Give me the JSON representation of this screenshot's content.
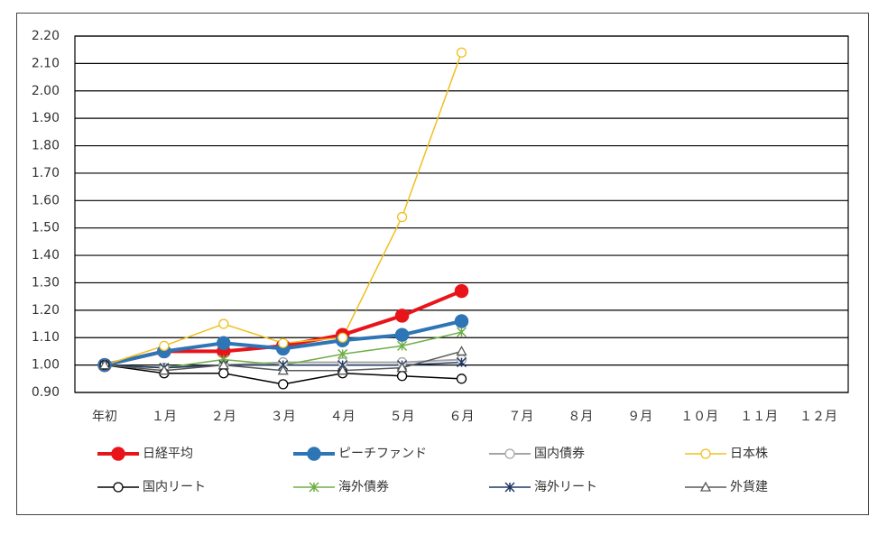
{
  "chart_data": {
    "type": "line",
    "categories": [
      "年初",
      "１月",
      "２月",
      "３月",
      "４月",
      "５月",
      "６月",
      "７月",
      "８月",
      "９月",
      "１０月",
      "１１月",
      "１２月"
    ],
    "ylim": [
      0.9,
      2.2
    ],
    "yticks": [
      {
        "value": 0.9,
        "label": "0.90"
      },
      {
        "value": 1.0,
        "label": "1.00"
      },
      {
        "value": 1.1,
        "label": "1.10"
      },
      {
        "value": 1.2,
        "label": "1.20"
      },
      {
        "value": 1.3,
        "label": "1.30"
      },
      {
        "value": 1.4,
        "label": "1.40"
      },
      {
        "value": 1.5,
        "label": "1.50"
      },
      {
        "value": 1.6,
        "label": "1.60"
      },
      {
        "value": 1.7,
        "label": "1.70"
      },
      {
        "value": 1.8,
        "label": "1.80"
      },
      {
        "value": 1.9,
        "label": "1.90"
      },
      {
        "value": 2.0,
        "label": "2.00"
      },
      {
        "value": 2.1,
        "label": "2.10"
      },
      {
        "value": 2.2,
        "label": "2.20"
      }
    ],
    "grid": true,
    "legend": "bottom",
    "series": [
      {
        "name": "日経平均",
        "color": "#e8141a",
        "width": 4,
        "marker": "circle",
        "values": [
          1.0,
          1.05,
          1.05,
          1.07,
          1.11,
          1.18,
          1.27,
          null,
          null,
          null,
          null,
          null,
          null
        ]
      },
      {
        "name": "ピーチファンド",
        "color": "#2e75b6",
        "width": 4,
        "marker": "circle",
        "values": [
          1.0,
          1.05,
          1.08,
          1.06,
          1.09,
          1.11,
          1.16,
          null,
          null,
          null,
          null,
          null,
          null
        ]
      },
      {
        "name": "国内債券",
        "color": "#a5a5a5",
        "width": 2,
        "marker": "circle",
        "values": [
          1.0,
          0.99,
          1.0,
          1.01,
          1.01,
          1.01,
          1.02,
          null,
          null,
          null,
          null,
          null,
          null
        ]
      },
      {
        "name": "日本株",
        "color": "#f0c020",
        "width": 1.5,
        "marker": "circle",
        "values": [
          1.0,
          1.07,
          1.15,
          1.08,
          1.1,
          1.54,
          2.14,
          null,
          null,
          null,
          null,
          null,
          null
        ]
      },
      {
        "name": "国内リート",
        "color": "#000000",
        "width": 1.5,
        "marker": "circle",
        "values": [
          1.0,
          0.97,
          0.97,
          0.93,
          0.97,
          0.96,
          0.95,
          null,
          null,
          null,
          null,
          null,
          null
        ]
      },
      {
        "name": "海外債券",
        "color": "#70ad47",
        "width": 1.5,
        "marker": "asterisk",
        "values": [
          1.0,
          0.99,
          1.02,
          1.0,
          1.04,
          1.07,
          1.12,
          null,
          null,
          null,
          null,
          null,
          null
        ]
      },
      {
        "name": "海外リート",
        "color": "#203864",
        "width": 1.5,
        "marker": "star",
        "values": [
          1.0,
          0.99,
          1.0,
          1.0,
          1.0,
          1.0,
          1.01,
          null,
          null,
          null,
          null,
          null,
          null
        ]
      },
      {
        "name": "外貨建",
        "color": "#595959",
        "width": 1.5,
        "marker": "triangle",
        "values": [
          1.0,
          0.98,
          1.0,
          0.98,
          0.98,
          0.99,
          1.05,
          null,
          null,
          null,
          null,
          null,
          null
        ]
      }
    ]
  }
}
